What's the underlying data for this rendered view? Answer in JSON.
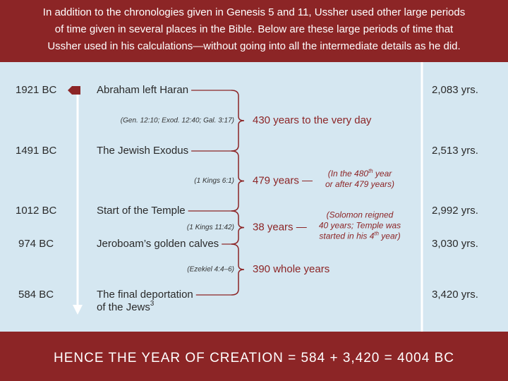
{
  "header": {
    "lines": [
      "In addition to the chronologies given in Genesis 5 and 11, Ussher used other large periods",
      "of time given in several places in the Bible. Below are these large periods of time that",
      "Ussher used in his calculations—without going into all the intermediate details as he did."
    ]
  },
  "events": [
    {
      "date": "1921 BC",
      "label": [
        [
          "Abraham left Haran"
        ]
      ],
      "years": "2,083 yrs."
    },
    {
      "date": "1491 BC",
      "label": [
        [
          "The Jewish Exodus"
        ]
      ],
      "years": "2,513 yrs."
    },
    {
      "date": "1012 BC",
      "label": [
        [
          "Start of the Temple"
        ]
      ],
      "years": "2,992 yrs."
    },
    {
      "date": "974 BC",
      "label": [
        [
          "Jeroboam’s golden calves"
        ]
      ],
      "years": "3,030 yrs."
    },
    {
      "date": "584 BC",
      "label": [
        [
          "The final deportation"
        ],
        [
          "of the Jews",
          "3"
        ]
      ],
      "years": "3,420 yrs."
    }
  ],
  "intervals": [
    {
      "reference": "(Gen. 12:10; Exod. 12:40; Gal. 3:17)",
      "span": "430 years to the very day",
      "note": []
    },
    {
      "reference": "(1 Kings 6:1)",
      "span": "479 years —",
      "note": [
        [
          "(In the 480",
          "th",
          " year"
        ],
        [
          "or after 479 years)"
        ]
      ]
    },
    {
      "reference": "(1 Kings 11:42)",
      "span": "38 years —",
      "note": [
        [
          "(Solomon reigned"
        ],
        [
          "40 years; Temple was"
        ],
        [
          "started in his 4",
          "th",
          " year)"
        ]
      ]
    },
    {
      "reference": "(Ezekiel 4:4–6)",
      "span": "390 whole years",
      "note": []
    }
  ],
  "footer": {
    "text": "HENCE THE YEAR OF CREATION = 584 + 3,420 = 4004 BC"
  }
}
